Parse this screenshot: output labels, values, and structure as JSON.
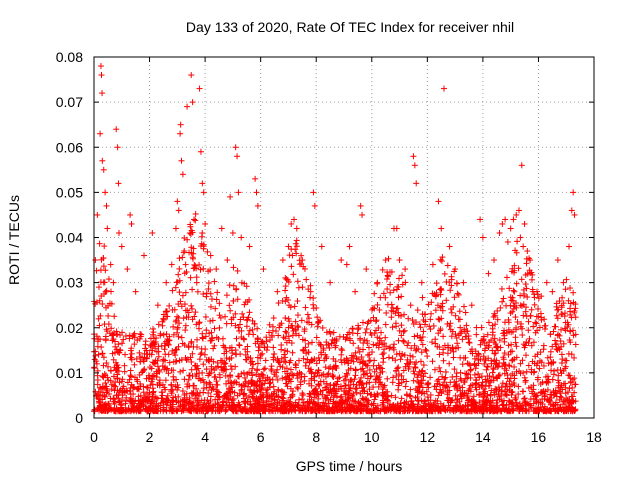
{
  "chart_data": {
    "type": "scatter",
    "title": "Day 133 of 2020, Rate Of TEC Index for receiver nhil",
    "xlabel": "GPS time / hours",
    "ylabel": "ROTI / TECUs",
    "xlim": [
      0,
      18
    ],
    "ylim": [
      0,
      0.08
    ],
    "xticks": [
      0,
      2,
      4,
      6,
      8,
      10,
      12,
      14,
      16,
      18
    ],
    "yticks": [
      0,
      0.01,
      0.02,
      0.03,
      0.04,
      0.05,
      0.06,
      0.07,
      0.08
    ],
    "xtick_labels": [
      "0",
      "2",
      "4",
      "6",
      "8",
      "10",
      "12",
      "14",
      "16",
      "18"
    ],
    "ytick_labels": [
      "0",
      "0.01",
      "0.02",
      "0.03",
      "0.04",
      "0.05",
      "0.06",
      "0.07",
      "0.08"
    ],
    "grid": true,
    "legend": "none",
    "marker": "plus",
    "color": "#ff0000",
    "series": [
      {
        "points": [
          [
            0.05,
            0.035
          ],
          [
            0.12,
            0.045
          ],
          [
            0.18,
            0.029
          ],
          [
            0.22,
            0.063
          ],
          [
            0.25,
            0.078
          ],
          [
            0.27,
            0.076
          ],
          [
            0.29,
            0.072
          ],
          [
            0.3,
            0.057
          ],
          [
            0.35,
            0.055
          ],
          [
            0.4,
            0.05
          ],
          [
            0.45,
            0.047
          ],
          [
            0.48,
            0.042
          ],
          [
            0.6,
            0.034
          ],
          [
            0.7,
            0.03
          ],
          [
            0.8,
            0.064
          ],
          [
            0.85,
            0.06
          ],
          [
            0.88,
            0.052
          ],
          [
            0.9,
            0.041
          ],
          [
            1.0,
            0.038
          ],
          [
            1.2,
            0.033
          ],
          [
            1.3,
            0.045
          ],
          [
            1.35,
            0.043
          ],
          [
            1.5,
            0.028
          ],
          [
            1.8,
            0.036
          ],
          [
            2.1,
            0.041
          ],
          [
            2.3,
            0.025
          ],
          [
            2.6,
            0.03
          ],
          [
            2.8,
            0.034
          ],
          [
            2.95,
            0.042
          ],
          [
            3.0,
            0.048
          ],
          [
            3.05,
            0.046
          ],
          [
            3.1,
            0.063
          ],
          [
            3.12,
            0.065
          ],
          [
            3.15,
            0.057
          ],
          [
            3.2,
            0.054
          ],
          [
            3.25,
            0.037
          ],
          [
            3.3,
            0.034
          ],
          [
            3.35,
            0.069
          ],
          [
            3.45,
            0.041
          ],
          [
            3.5,
            0.076
          ],
          [
            3.55,
            0.07
          ],
          [
            3.6,
            0.044
          ],
          [
            3.7,
            0.03
          ],
          [
            3.8,
            0.073
          ],
          [
            3.85,
            0.059
          ],
          [
            3.9,
            0.052
          ],
          [
            3.95,
            0.05
          ],
          [
            4.0,
            0.043
          ],
          [
            4.2,
            0.036
          ],
          [
            4.4,
            0.033
          ],
          [
            4.6,
            0.042
          ],
          [
            4.8,
            0.035
          ],
          [
            4.9,
            0.049
          ],
          [
            5.0,
            0.041
          ],
          [
            5.1,
            0.06
          ],
          [
            5.15,
            0.058
          ],
          [
            5.2,
            0.05
          ],
          [
            5.3,
            0.04
          ],
          [
            5.6,
            0.038
          ],
          [
            5.8,
            0.053
          ],
          [
            5.85,
            0.05
          ],
          [
            5.9,
            0.047
          ],
          [
            6.1,
            0.033
          ],
          [
            6.6,
            0.028
          ],
          [
            6.8,
            0.035
          ],
          [
            7.0,
            0.038
          ],
          [
            7.1,
            0.043
          ],
          [
            7.2,
            0.044
          ],
          [
            7.3,
            0.042
          ],
          [
            7.5,
            0.035
          ],
          [
            7.8,
            0.028
          ],
          [
            7.9,
            0.05
          ],
          [
            7.95,
            0.047
          ],
          [
            8.2,
            0.038
          ],
          [
            8.5,
            0.03
          ],
          [
            8.9,
            0.035
          ],
          [
            9.1,
            0.034
          ],
          [
            9.2,
            0.038
          ],
          [
            9.4,
            0.028
          ],
          [
            9.6,
            0.047
          ],
          [
            9.65,
            0.045
          ],
          [
            9.8,
            0.033
          ],
          [
            10.2,
            0.03
          ],
          [
            10.5,
            0.035
          ],
          [
            10.8,
            0.042
          ],
          [
            10.9,
            0.042
          ],
          [
            11.0,
            0.035
          ],
          [
            11.2,
            0.033
          ],
          [
            11.4,
            0.025
          ],
          [
            11.5,
            0.058
          ],
          [
            11.55,
            0.056
          ],
          [
            11.6,
            0.052
          ],
          [
            11.8,
            0.03
          ],
          [
            12.2,
            0.034
          ],
          [
            12.4,
            0.048
          ],
          [
            12.5,
            0.042
          ],
          [
            12.6,
            0.073
          ],
          [
            12.8,
            0.038
          ],
          [
            13.0,
            0.033
          ],
          [
            13.3,
            0.03
          ],
          [
            13.6,
            0.025
          ],
          [
            13.9,
            0.044
          ],
          [
            14.0,
            0.04
          ],
          [
            14.2,
            0.032
          ],
          [
            14.4,
            0.035
          ],
          [
            14.6,
            0.041
          ],
          [
            14.7,
            0.043
          ],
          [
            14.8,
            0.044
          ],
          [
            14.9,
            0.039
          ],
          [
            15.0,
            0.042
          ],
          [
            15.1,
            0.044
          ],
          [
            15.2,
            0.045
          ],
          [
            15.3,
            0.046
          ],
          [
            15.35,
            0.04
          ],
          [
            15.4,
            0.056
          ],
          [
            15.45,
            0.038
          ],
          [
            15.5,
            0.043
          ],
          [
            15.6,
            0.037
          ],
          [
            15.7,
            0.035
          ],
          [
            15.8,
            0.028
          ],
          [
            16.1,
            0.027
          ],
          [
            16.3,
            0.03
          ],
          [
            16.5,
            0.028
          ],
          [
            16.7,
            0.035
          ],
          [
            16.9,
            0.03
          ],
          [
            17.1,
            0.038
          ],
          [
            17.2,
            0.046
          ],
          [
            17.25,
            0.05
          ],
          [
            17.3,
            0.045
          ]
        ]
      }
    ]
  }
}
